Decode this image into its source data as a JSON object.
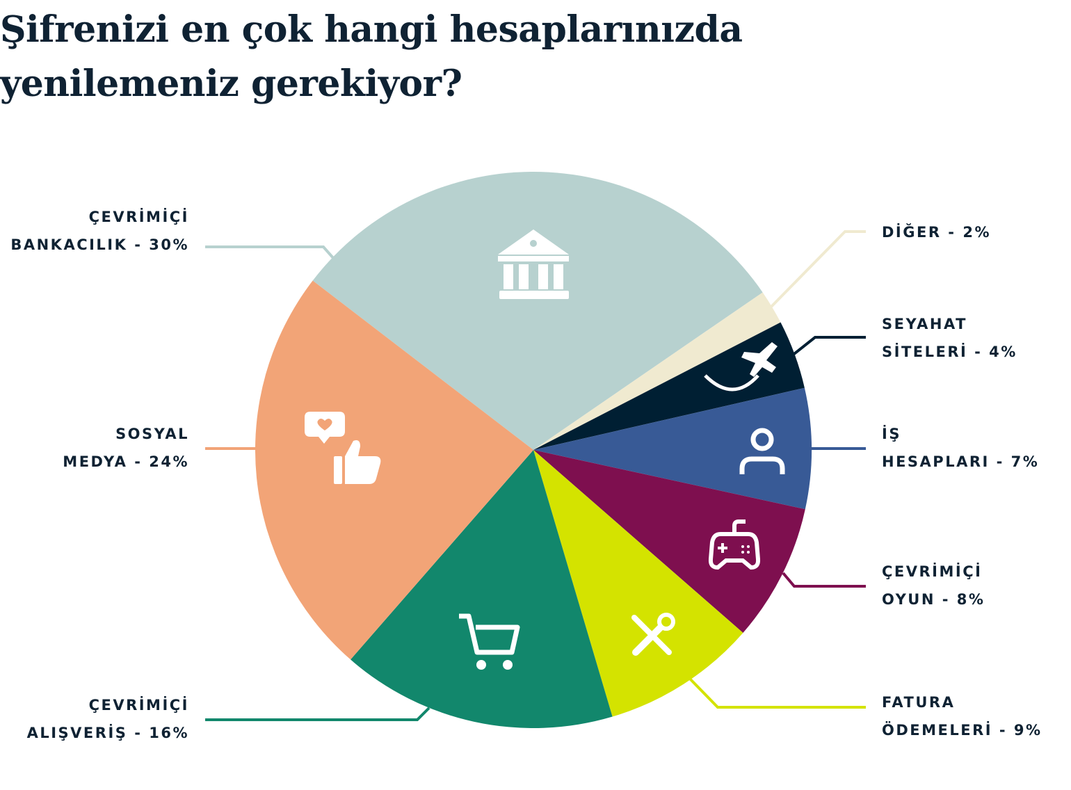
{
  "chart_data": {
    "type": "pie",
    "title": [
      "Şifrenizi en çok hangi hesaplarınızda",
      "yenilemeniz gerekiyor?"
    ],
    "unit": "%",
    "slices": [
      {
        "label": [
          "ÇEVRİMİÇİ",
          "BANKACILIK - 30%"
        ],
        "value": 30,
        "color": "#b7d1cf",
        "icon": "bank-icon"
      },
      {
        "label": [
          "DİĞER - 2%"
        ],
        "value": 2,
        "color": "#f0ead0",
        "icon": ""
      },
      {
        "label": [
          "SEYAHAT",
          "SİTELERİ - 4%"
        ],
        "value": 4,
        "color": "#001f33",
        "icon": "airplane-icon"
      },
      {
        "label": [
          "İŞ",
          "HESAPLARI - 7%"
        ],
        "value": 7,
        "color": "#385a96",
        "icon": "user-icon"
      },
      {
        "label": [
          "ÇEVRİMİÇİ",
          "OYUN - 8%"
        ],
        "value": 8,
        "color": "#7e0f4f",
        "icon": "gamepad-icon"
      },
      {
        "label": [
          "FATURA",
          "ÖDEMELERİ - 9%"
        ],
        "value": 9,
        "color": "#d4e300",
        "icon": "tools-icon"
      },
      {
        "label": [
          "ÇEVRİMİÇİ",
          "ALIŞVERİŞ - 16%"
        ],
        "value": 16,
        "color": "#12876c",
        "icon": "shopping-cart-icon"
      },
      {
        "label": [
          "SOSYAL",
          "MEDYA - 24%"
        ],
        "value": 24,
        "color": "#f2a477",
        "icon": "social-like-icon"
      }
    ]
  }
}
